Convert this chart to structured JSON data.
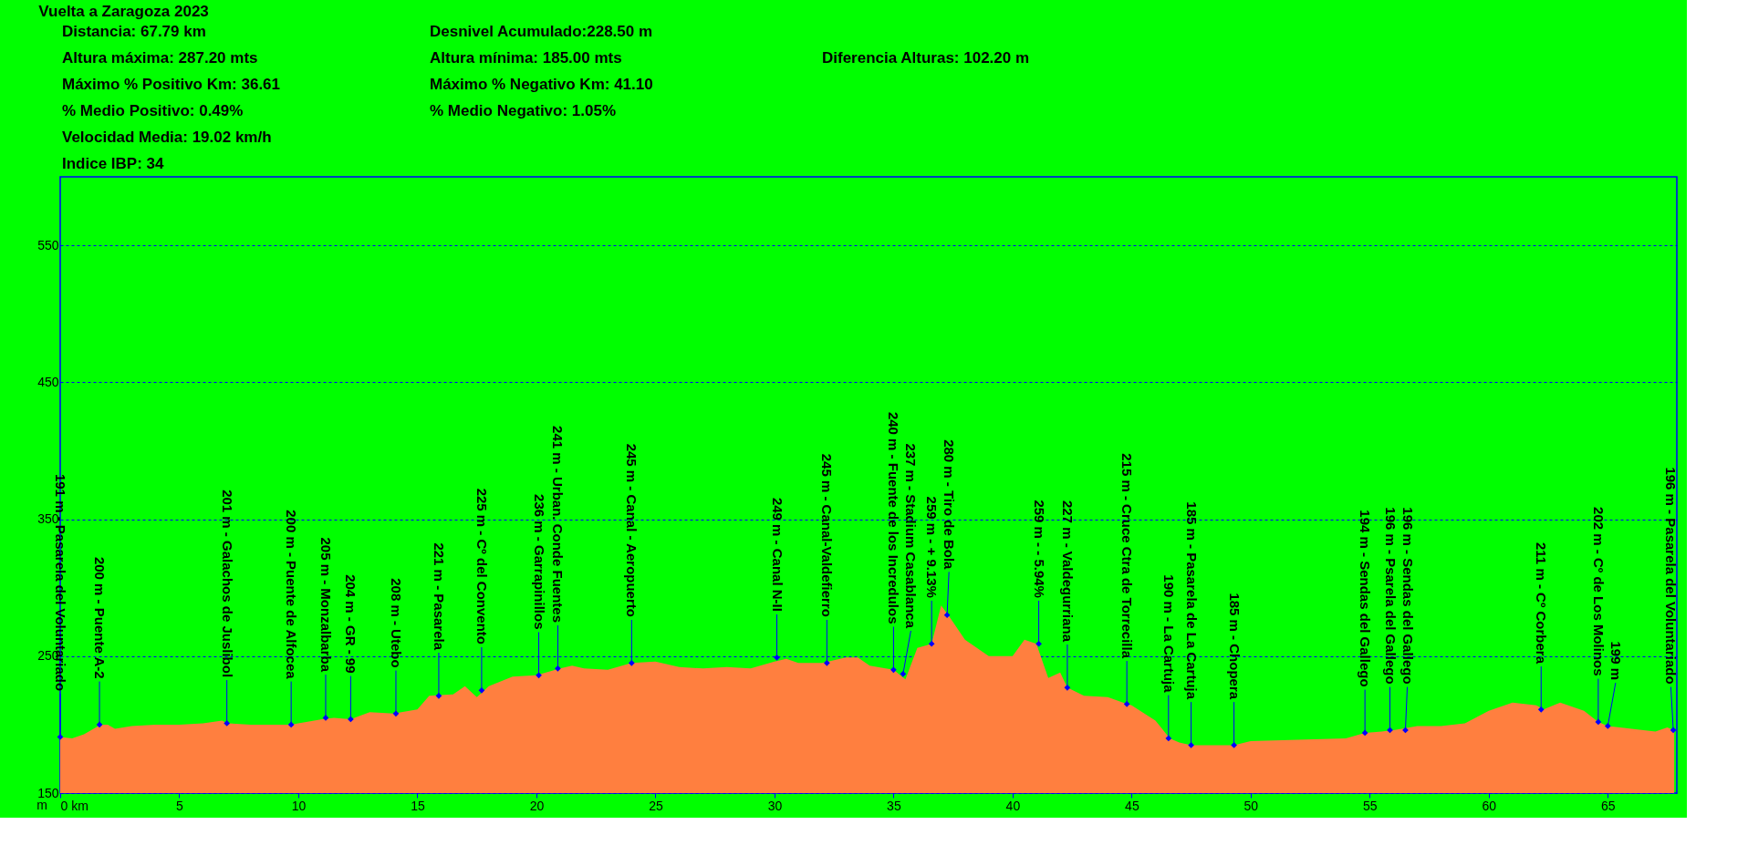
{
  "chart_data": {
    "type": "area",
    "title": "Vuelta a Zaragoza 2023",
    "ylabel": "m",
    "annotations": [
      "Distancia: 67.79 km",
      "Desnivel Acumulado:228.50 m",
      "Altura máxima: 287.20 mts",
      "Altura mínima: 185.00 mts",
      "Diferencia Alturas:  102.20 m",
      "Máximo % Positivo Km: 36.61",
      " Máximo % Negativo Km: 41.10",
      "% Medio Positivo: 0.49%",
      "% Medio Negativo: 1.05%",
      "Velocidad Media: 19.02 km/h",
      "Indice IBP: 34",
      {
        "text": "191 m - Pasarela del Voluntariado",
        "x": 0.0,
        "y": 191
      },
      {
        "text": "200 m - Puente A-2",
        "x": 1.65,
        "y": 200
      },
      {
        "text": "201 m - Galachos de Juslibol",
        "x": 7.0,
        "y": 201
      },
      {
        "text": "200 m - Puente de Alfocea",
        "x": 9.7,
        "y": 200
      },
      {
        "text": "205 m - Monzalbarba",
        "x": 11.15,
        "y": 205
      },
      {
        "text": "204 m - GR - 99",
        "x": 12.2,
        "y": 204
      },
      {
        "text": "208 m - Utebo",
        "x": 14.1,
        "y": 208
      },
      {
        "text": "221 m - Pasarela",
        "x": 15.9,
        "y": 221
      },
      {
        "text": "225 m - Cº del Convento",
        "x": 17.7,
        "y": 225
      },
      {
        "text": "236 m - Garrapinillos",
        "x": 20.1,
        "y": 236
      },
      {
        "text": "241 m - Urban. Conde Fuentes",
        "x": 20.9,
        "y": 241
      },
      {
        "text": "245 m - Canal - Aeropuerto",
        "x": 24.0,
        "y": 245
      },
      {
        "text": "249 m - Canal N-II",
        "x": 30.1,
        "y": 249
      },
      {
        "text": "245 m - Canal-Valdefierro",
        "x": 32.2,
        "y": 245
      },
      {
        "text": "240 m - Fuente de los Incredulos",
        "x": 35.0,
        "y": 240
      },
      {
        "text": "237 m - Stadium Casablanca",
        "x": 35.4,
        "y": 237
      },
      {
        "text": "259 m - + 9.13%",
        "x": 36.6,
        "y": 259
      },
      {
        "text": "280 m - Tiro de Bola",
        "x": 37.25,
        "y": 280
      },
      {
        "text": "259 m - - 5.94%",
        "x": 41.1,
        "y": 259
      },
      {
        "text": "227 m - Valdegurriana",
        "x": 42.3,
        "y": 227
      },
      {
        "text": "215 m - Cruce Ctra de Torrecilla",
        "x": 44.8,
        "y": 215
      },
      {
        "text": "190 m - La Cartuja",
        "x": 46.55,
        "y": 190
      },
      {
        "text": "185 m - Pasarela de La Cartuja",
        "x": 47.5,
        "y": 185
      },
      {
        "text": "185 m - Chopera",
        "x": 49.3,
        "y": 185
      },
      {
        "text": "194 m - Sendas del Gallego",
        "x": 54.8,
        "y": 194
      },
      {
        "text": "196 m - Psarela del Gallego",
        "x": 55.85,
        "y": 196
      },
      {
        "text": "196 m - Sendas del Gallego",
        "x": 56.5,
        "y": 196
      },
      {
        "text": "211 m - Cº Corbera",
        "x": 62.2,
        "y": 211
      },
      {
        "text": "202 m - Cº de Los Molinos",
        "x": 64.6,
        "y": 202
      },
      {
        "text": "199 m",
        "x": 65.0,
        "y": 199
      },
      {
        "text": "196 m - Pasarela del Voluntariado",
        "x": 67.75,
        "y": 196
      }
    ],
    "x": [
      0,
      0.5,
      1,
      1.7,
      2,
      2.3,
      3,
      4,
      5,
      6,
      6.8,
      7,
      8,
      9,
      9.7,
      10,
      11,
      11.5,
      12.2,
      13,
      14,
      15,
      15.5,
      16.5,
      17,
      17.5,
      18,
      19,
      20,
      21,
      21.5,
      22,
      23,
      24,
      25,
      26,
      27,
      28,
      29,
      30,
      30.5,
      31,
      32,
      33,
      33.5,
      34,
      35,
      35.5,
      36,
      36.6,
      37,
      37.3,
      38,
      39,
      40,
      40.5,
      41,
      41.5,
      42,
      42.3,
      43,
      44,
      44.8,
      45,
      46,
      46.6,
      47,
      47.5,
      49.3,
      50,
      52,
      54,
      54.8,
      55.5,
      56,
      57,
      58,
      59,
      60,
      61,
      62,
      62.3,
      63,
      64,
      64.6,
      65,
      66,
      67,
      67.5,
      67.79
    ],
    "series": [
      {
        "color": "#ff7f3f",
        "values": [
          191,
          190,
          193,
          200,
          200,
          197,
          199,
          200,
          200,
          201,
          203,
          201,
          200,
          200,
          200,
          201,
          204,
          205,
          204,
          209,
          208,
          211,
          221,
          222,
          228,
          220,
          228,
          235,
          236,
          241,
          243,
          241,
          240,
          245,
          246,
          242,
          241,
          242,
          241,
          246,
          248,
          245,
          245,
          249,
          249,
          243,
          240,
          233,
          256,
          259,
          287,
          280,
          262,
          250,
          250,
          262,
          259,
          234,
          238,
          227,
          221,
          220,
          215,
          214,
          203,
          190,
          187,
          185,
          185,
          188,
          189,
          190,
          194,
          195,
          196,
          199,
          199,
          201,
          210,
          216,
          214,
          211,
          216,
          210,
          202,
          199,
          197,
          195,
          198,
          196
        ]
      }
    ],
    "xlim": [
      0,
      67.9
    ],
    "ylim": [
      150,
      600
    ],
    "xticks": [
      {
        "value": 0,
        "label": "0 km"
      },
      5,
      10,
      15,
      20,
      25,
      30,
      35,
      40,
      45,
      50,
      55,
      60,
      65
    ],
    "yticks": [
      150,
      250,
      350,
      450,
      550
    ],
    "grid": "y"
  }
}
